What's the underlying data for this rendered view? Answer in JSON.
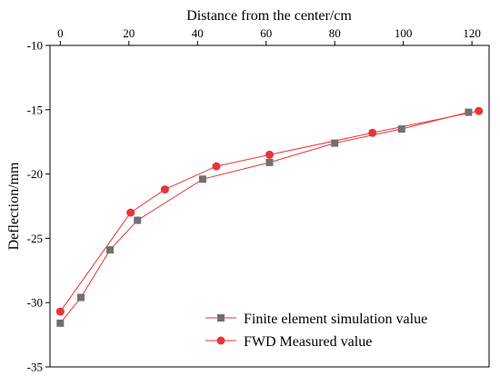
{
  "chart_data": {
    "type": "line",
    "title": "",
    "xlabel": "Distance from the center/cm",
    "ylabel": "Deflection/mm",
    "xlim": [
      -3,
      125
    ],
    "ylim": [
      -35,
      -10
    ],
    "x_ticks": [
      0,
      20,
      40,
      60,
      80,
      100,
      120
    ],
    "y_ticks": [
      -35,
      -30,
      -25,
      -20,
      -15,
      -10
    ],
    "x_axis_position": "top",
    "grid": false,
    "legend_position": "bottom-right",
    "series": [
      {
        "name": "Finite element simulation value",
        "color": "#e8343a",
        "marker": "square",
        "marker_color": "#707070",
        "x": [
          0,
          6,
          14.5,
          22.5,
          41.5,
          61,
          80,
          99.5,
          119
        ],
        "y": [
          -31.6,
          -29.6,
          -25.9,
          -23.6,
          -20.4,
          -19.1,
          -17.6,
          -16.5,
          -15.2
        ]
      },
      {
        "name": "FWD Measured value",
        "color": "#e8343a",
        "marker": "circle",
        "marker_color": "#e8343a",
        "x": [
          0,
          20.5,
          30.5,
          45.5,
          61,
          91,
          122
        ],
        "y": [
          -30.7,
          -23,
          -21.2,
          -19.4,
          -18.5,
          -16.8,
          -15.1
        ]
      }
    ]
  }
}
